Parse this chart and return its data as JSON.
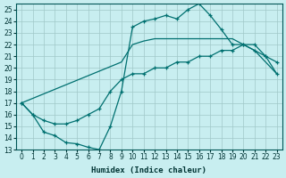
{
  "xlabel": "Humidex (Indice chaleur)",
  "bg_color": "#c8eef0",
  "grid_color": "#a0c8c8",
  "line_color": "#007070",
  "xlim": [
    -0.5,
    23.5
  ],
  "ylim": [
    13,
    25.5
  ],
  "xticks": [
    0,
    1,
    2,
    3,
    4,
    5,
    6,
    7,
    8,
    9,
    10,
    11,
    12,
    13,
    14,
    15,
    16,
    17,
    18,
    19,
    20,
    21,
    22,
    23
  ],
  "yticks": [
    13,
    14,
    15,
    16,
    17,
    18,
    19,
    20,
    21,
    22,
    23,
    24,
    25
  ],
  "curve1_x": [
    0,
    1,
    2,
    3,
    4,
    5,
    6,
    7,
    8,
    9,
    10,
    11,
    12,
    13,
    14,
    15,
    16,
    17,
    18,
    19,
    20,
    21,
    22,
    23
  ],
  "curve1_y": [
    17,
    16,
    14.5,
    14.2,
    13.6,
    13.5,
    13.2,
    13,
    15.0,
    18.0,
    23.5,
    24.0,
    24.2,
    24.5,
    24.2,
    25.0,
    25.5,
    24.5,
    23.3,
    22.0,
    22.0,
    22.0,
    21.0,
    20.5
  ],
  "curve2_x": [
    0,
    9,
    10,
    11,
    12,
    13,
    14,
    15,
    16,
    17,
    18,
    19,
    20,
    21,
    22,
    23
  ],
  "curve2_y": [
    17,
    20.5,
    22.0,
    22.3,
    22.5,
    22.5,
    22.5,
    22.5,
    22.5,
    22.5,
    22.5,
    22.5,
    22.0,
    21.5,
    20.5,
    19.5
  ],
  "curve3_x": [
    0,
    1,
    2,
    3,
    4,
    5,
    6,
    7,
    8,
    9,
    10,
    11,
    12,
    13,
    14,
    15,
    16,
    17,
    18,
    19,
    20,
    21,
    22,
    23
  ],
  "curve3_y": [
    17,
    16,
    15.5,
    15.2,
    15.2,
    15.5,
    16.0,
    16.5,
    18.0,
    19.0,
    19.5,
    19.5,
    20.0,
    20.0,
    20.5,
    20.5,
    21.0,
    21.0,
    21.5,
    21.5,
    22.0,
    21.5,
    21.0,
    19.5
  ]
}
